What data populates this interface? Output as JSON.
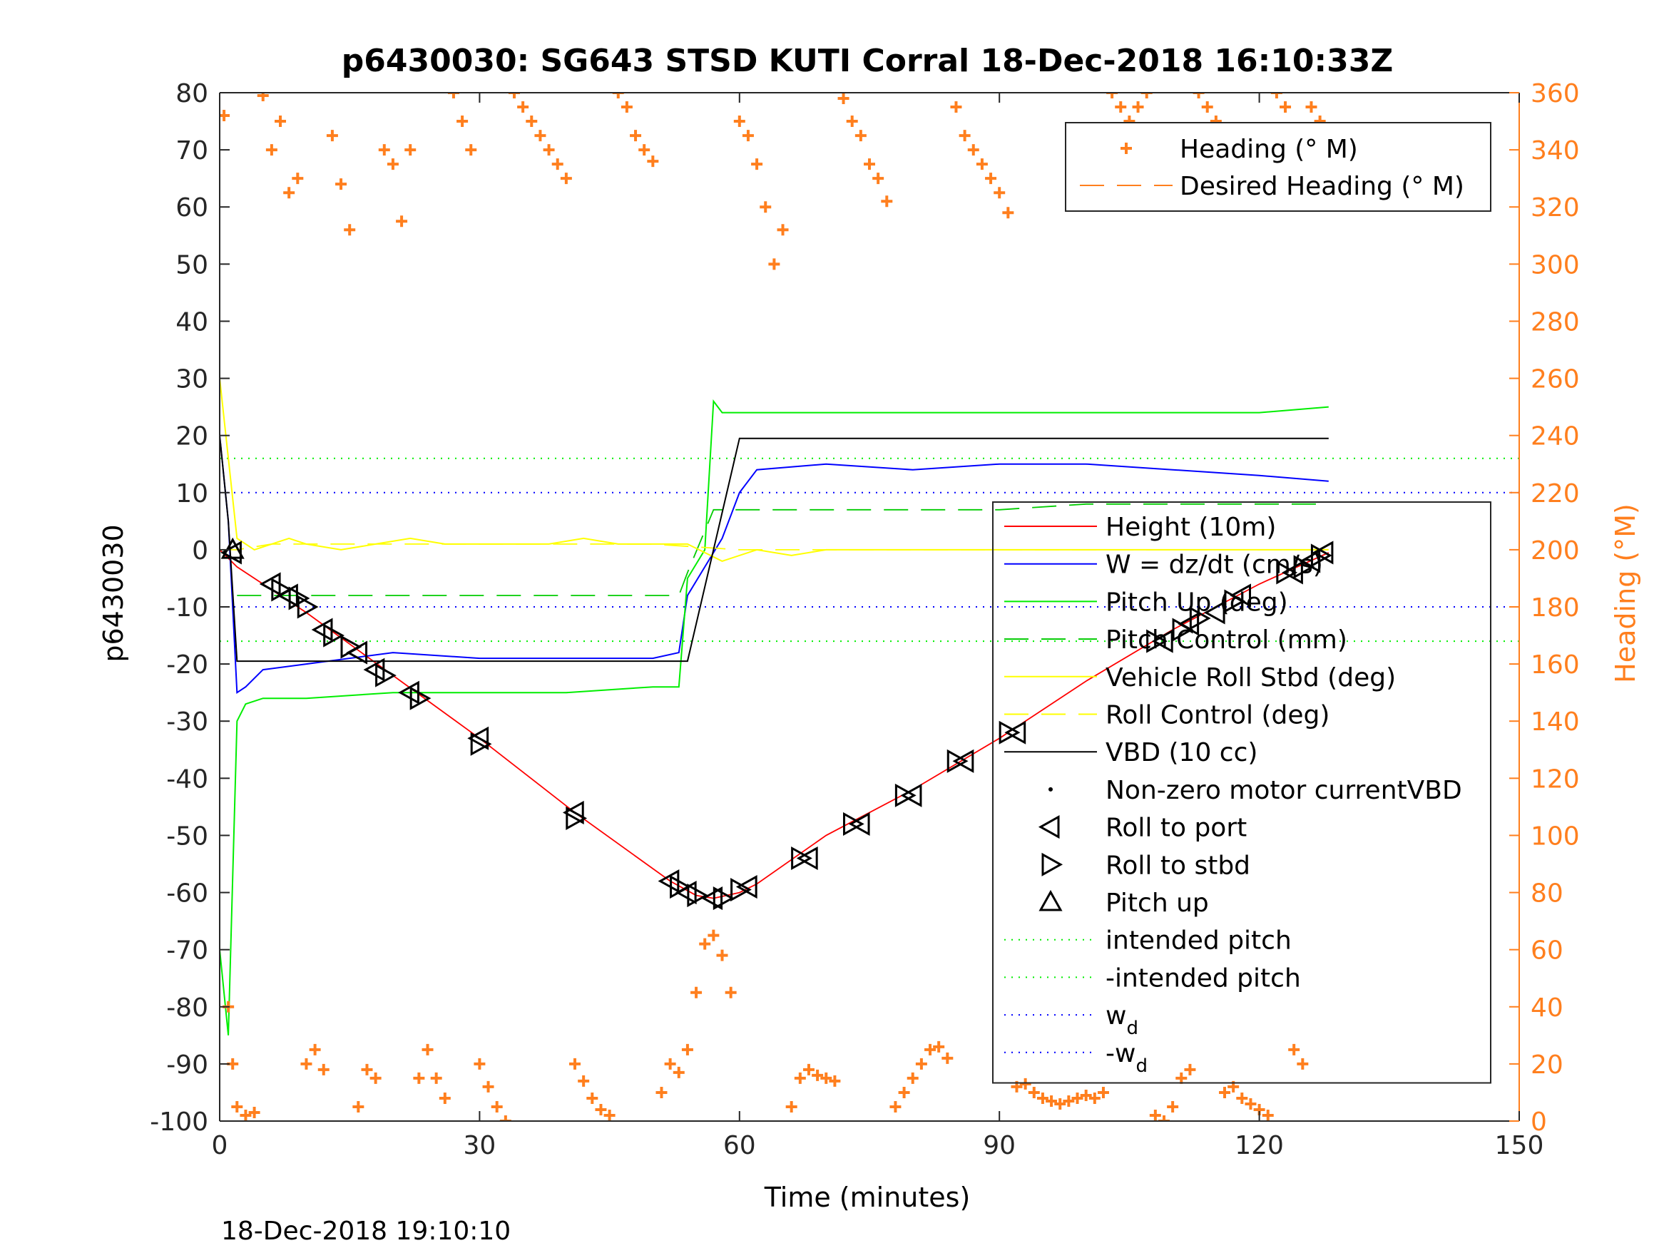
{
  "chart_data": {
    "type": "line",
    "title": "p6430030: SG643 STSD KUTI Corral 18-Dec-2018 16:10:33Z",
    "footer": "18-Dec-2018 19:10:10",
    "xlabel": "Time (minutes)",
    "ylabel_left": "p6430030",
    "ylabel_right": "Heading (°M)",
    "xlim": [
      0,
      150
    ],
    "ylim_left": [
      -100,
      80
    ],
    "ylim_right": [
      0,
      360
    ],
    "x_ticks": [
      0,
      30,
      60,
      90,
      120,
      150
    ],
    "y_ticks_left": [
      -100,
      -90,
      -80,
      -70,
      -60,
      -50,
      -40,
      -30,
      -20,
      -10,
      0,
      10,
      20,
      30,
      40,
      50,
      60,
      70,
      80
    ],
    "y_ticks_right": [
      0,
      20,
      40,
      60,
      80,
      100,
      120,
      140,
      160,
      180,
      200,
      220,
      240,
      260,
      280,
      300,
      320,
      340,
      360
    ],
    "grid": false,
    "colors": {
      "height": "#ff0000",
      "w": "#0000ff",
      "pitch": "#00ee00",
      "roll": "#ffff00",
      "vbd": "#000000",
      "heading": "#ff7f1e",
      "axis_right": "#ff7f1e"
    },
    "legend_heading": {
      "placement": "top-right",
      "entries": [
        {
          "label": "Heading (° M)",
          "style": "plus",
          "color": "#ff7f1e"
        },
        {
          "label": "Desired Heading (° M)",
          "style": "dashed",
          "color": "#ff7f1e"
        }
      ]
    },
    "legend_main": {
      "placement": "right",
      "entries": [
        {
          "label": "Height (10m)",
          "style": "solid",
          "color": "#ff0000"
        },
        {
          "label": "W = dz/dt (cm/s)",
          "style": "solid",
          "color": "#0000ff"
        },
        {
          "label": "Pitch Up (deg)",
          "style": "solid",
          "color": "#00ee00"
        },
        {
          "label": "Pitch Control (mm)",
          "style": "dashed",
          "color": "#00cc00"
        },
        {
          "label": "Vehicle Roll Stbd (deg)",
          "style": "solid",
          "color": "#ffff00"
        },
        {
          "label": "Roll Control (deg)",
          "style": "dashed",
          "color": "#ffff00"
        },
        {
          "label": "VBD (10 cc)",
          "style": "solid",
          "color": "#000000"
        },
        {
          "label": "Non-zero motor currentVBD",
          "style": "dot",
          "color": "#000000"
        },
        {
          "label": "Roll to port",
          "style": "tri-left",
          "color": "#000000"
        },
        {
          "label": "Roll to stbd",
          "style": "tri-right",
          "color": "#000000"
        },
        {
          "label": "Pitch up",
          "style": "tri-up",
          "color": "#000000"
        },
        {
          "label": "intended pitch",
          "style": "dotted",
          "color": "#00ee00"
        },
        {
          "label": "-intended pitch",
          "style": "dotted",
          "color": "#00ee00"
        },
        {
          "label": "w",
          "sub": "d",
          "style": "dotted",
          "color": "#0000ff"
        },
        {
          "label": "-w",
          "sub": "d",
          "style": "dotted",
          "color": "#0000ff"
        }
      ]
    },
    "reference_lines": [
      {
        "name": "intended pitch",
        "y": 16,
        "color": "#00ee00"
      },
      {
        "name": "-intended pitch",
        "y": -16,
        "color": "#00ee00"
      },
      {
        "name": "w_d",
        "y": 10,
        "color": "#0000ff"
      },
      {
        "name": "-w_d",
        "y": -10,
        "color": "#0000ff"
      }
    ],
    "series": [
      {
        "name": "Height (10m)",
        "axis": "left",
        "x": [
          0,
          2,
          10,
          20,
          30,
          41,
          52,
          55,
          57,
          60,
          62,
          70,
          80,
          90,
          100,
          110,
          120,
          128
        ],
        "y": [
          0,
          -3,
          -11,
          -22,
          -33,
          -46,
          -58,
          -60.5,
          -61,
          -60,
          -58.5,
          -50,
          -42,
          -33,
          -23,
          -14,
          -6,
          -0.5
        ]
      },
      {
        "name": "W = dz/dt (cm/s)",
        "axis": "left",
        "x": [
          0,
          1,
          2,
          3,
          5,
          10,
          20,
          30,
          40,
          50,
          53,
          54,
          56,
          58,
          60,
          62,
          70,
          80,
          90,
          100,
          110,
          120,
          128
        ],
        "y": [
          20,
          5,
          -25,
          -24,
          -21,
          -20,
          -18,
          -19,
          -19,
          -19,
          -18,
          -8,
          -3,
          2,
          10,
          14,
          15,
          14,
          15,
          15,
          14,
          13,
          12
        ]
      },
      {
        "name": "Pitch Up (deg)",
        "axis": "left",
        "x": [
          0,
          1,
          2,
          3,
          5,
          10,
          20,
          30,
          40,
          50,
          53,
          54,
          56,
          57,
          58,
          60,
          70,
          80,
          90,
          100,
          110,
          120,
          128
        ],
        "y": [
          -70,
          -85,
          -30,
          -27,
          -26,
          -26,
          -25,
          -25,
          -25,
          -24,
          -24,
          -5,
          0,
          26,
          24,
          24,
          24,
          24,
          24,
          24,
          24,
          24,
          25
        ]
      },
      {
        "name": "Pitch Control (mm)",
        "axis": "left",
        "x": [
          2,
          10,
          20,
          30,
          40,
          53,
          54,
          57,
          60,
          70,
          80,
          90,
          100,
          110,
          120,
          128
        ],
        "y": [
          -8,
          -8,
          -8,
          -8,
          -8,
          -8,
          -4,
          7,
          7,
          7,
          7,
          7,
          8,
          8,
          8,
          8
        ]
      },
      {
        "name": "Vehicle Roll Stbd (deg)",
        "axis": "left",
        "x": [
          0,
          2,
          4,
          6,
          8,
          10,
          14,
          18,
          22,
          26,
          30,
          34,
          38,
          42,
          46,
          50,
          54,
          58,
          62,
          66,
          70,
          74,
          78,
          82,
          86,
          90,
          94,
          98,
          102,
          106,
          110,
          114,
          118,
          122,
          126,
          128
        ],
        "y": [
          30,
          2,
          0,
          1,
          2,
          1,
          0,
          1,
          2,
          1,
          1,
          1,
          1,
          2,
          1,
          1,
          1,
          -2,
          0,
          -1,
          0,
          0,
          0,
          0,
          0,
          0,
          0,
          0,
          0,
          0,
          0,
          0,
          0,
          0,
          0,
          0
        ]
      },
      {
        "name": "Roll Control (deg)",
        "axis": "left",
        "x": [
          0,
          2,
          6,
          10,
          20,
          30,
          40,
          50,
          60,
          70,
          80,
          90,
          100,
          110,
          120,
          128
        ],
        "y": [
          0,
          0,
          1,
          1,
          1,
          1,
          1,
          1,
          0,
          0,
          0,
          0,
          0,
          0,
          0,
          0
        ]
      },
      {
        "name": "VBD (10 cc)",
        "axis": "left",
        "x": [
          0,
          1,
          2,
          20,
          40,
          53,
          54,
          60,
          70,
          80,
          90,
          100,
          110,
          120,
          128
        ],
        "y": [
          20,
          5,
          -19.5,
          -19.5,
          -19.5,
          -19.5,
          -19.5,
          19.5,
          19.5,
          19.5,
          19.5,
          19.5,
          19.5,
          19.5,
          19.5
        ]
      },
      {
        "name": "Roll to port",
        "axis": "left",
        "marker": "tri-left",
        "x": [
          1.5,
          6,
          8,
          12,
          16,
          18,
          22,
          30,
          41,
          52,
          54,
          57,
          61,
          68,
          74,
          80,
          86,
          92,
          109,
          112,
          115,
          118,
          124,
          126,
          127.5
        ],
        "y": [
          -0.5,
          -6,
          -8,
          -14,
          -18,
          -21,
          -25,
          -33,
          -46,
          -58,
          -60,
          -61,
          -59,
          -54,
          -48,
          -43,
          -37,
          -32,
          -16,
          -13,
          -11,
          -8,
          -4,
          -2,
          -0.5
        ]
      },
      {
        "name": "Roll to stbd",
        "axis": "left",
        "marker": "tri-right",
        "x": [
          7,
          9,
          10,
          13,
          15,
          19,
          23,
          30,
          41,
          53,
          55,
          58,
          60,
          67,
          73,
          79,
          85,
          91,
          108,
          111,
          113,
          117,
          123,
          125,
          127
        ],
        "y": [
          -7,
          -8.5,
          -10,
          -15,
          -17,
          -22,
          -26,
          -34,
          -47,
          -59,
          -60.5,
          -61,
          -59.5,
          -54,
          -48,
          -43,
          -37,
          -32,
          -16,
          -14,
          -12,
          -9,
          -4,
          -3,
          -1
        ]
      },
      {
        "name": "Pitch up",
        "axis": "left",
        "marker": "tri-up",
        "x": [
          1.5
        ],
        "y": [
          0
        ]
      },
      {
        "name": "Heading (° M)",
        "axis": "right",
        "marker": "plus",
        "x": [
          0.5,
          1,
          1.5,
          2,
          3,
          4,
          5,
          6,
          7,
          8,
          9,
          10,
          11,
          12,
          13,
          14,
          15,
          16,
          17,
          18,
          19,
          20,
          21,
          22,
          23,
          24,
          25,
          26,
          27,
          28,
          29,
          30,
          31,
          32,
          33,
          34,
          35,
          36,
          37,
          38,
          39,
          40,
          41,
          42,
          43,
          44,
          45,
          46,
          47,
          48,
          49,
          50,
          51,
          52,
          53,
          54,
          55,
          56,
          57,
          58,
          59,
          60,
          61,
          62,
          63,
          64,
          65,
          66,
          67,
          68,
          69,
          70,
          71,
          72,
          73,
          74,
          75,
          76,
          77,
          78,
          79,
          80,
          81,
          82,
          83,
          84,
          85,
          86,
          87,
          88,
          89,
          90,
          91,
          92,
          93,
          94,
          95,
          96,
          97,
          98,
          99,
          100,
          101,
          102,
          103,
          104,
          105,
          106,
          107,
          108,
          109,
          110,
          111,
          112,
          113,
          114,
          115,
          116,
          117,
          118,
          119,
          120,
          121,
          122,
          123,
          124,
          125,
          126,
          127,
          128
        ],
        "y": [
          352,
          40,
          20,
          5,
          2,
          3,
          359,
          340,
          350,
          325,
          330,
          20,
          25,
          18,
          345,
          328,
          312,
          5,
          18,
          15,
          340,
          335,
          315,
          340,
          15,
          25,
          15,
          8,
          360,
          350,
          340,
          20,
          12,
          5,
          0,
          360,
          355,
          350,
          345,
          340,
          335,
          330,
          20,
          14,
          8,
          4,
          2,
          360,
          355,
          345,
          340,
          336,
          10,
          20,
          17,
          25,
          45,
          62,
          65,
          58,
          45,
          350,
          345,
          335,
          320,
          300,
          312,
          5,
          15,
          18,
          16,
          15,
          14,
          358,
          350,
          345,
          335,
          330,
          322,
          5,
          10,
          15,
          20,
          25,
          26,
          22,
          355,
          345,
          340,
          335,
          330,
          325,
          318,
          12,
          13,
          10,
          8,
          7,
          6,
          7,
          8,
          9,
          8,
          10,
          360,
          355,
          350,
          355,
          360,
          2,
          0,
          5,
          15,
          18,
          360,
          355,
          350,
          10,
          12,
          8,
          6,
          4,
          2,
          360,
          355,
          25,
          20,
          355,
          350,
          345
        ]
      },
      {
        "name": "Desired Heading (° M)",
        "axis": "right",
        "x": [],
        "y": []
      }
    ]
  }
}
